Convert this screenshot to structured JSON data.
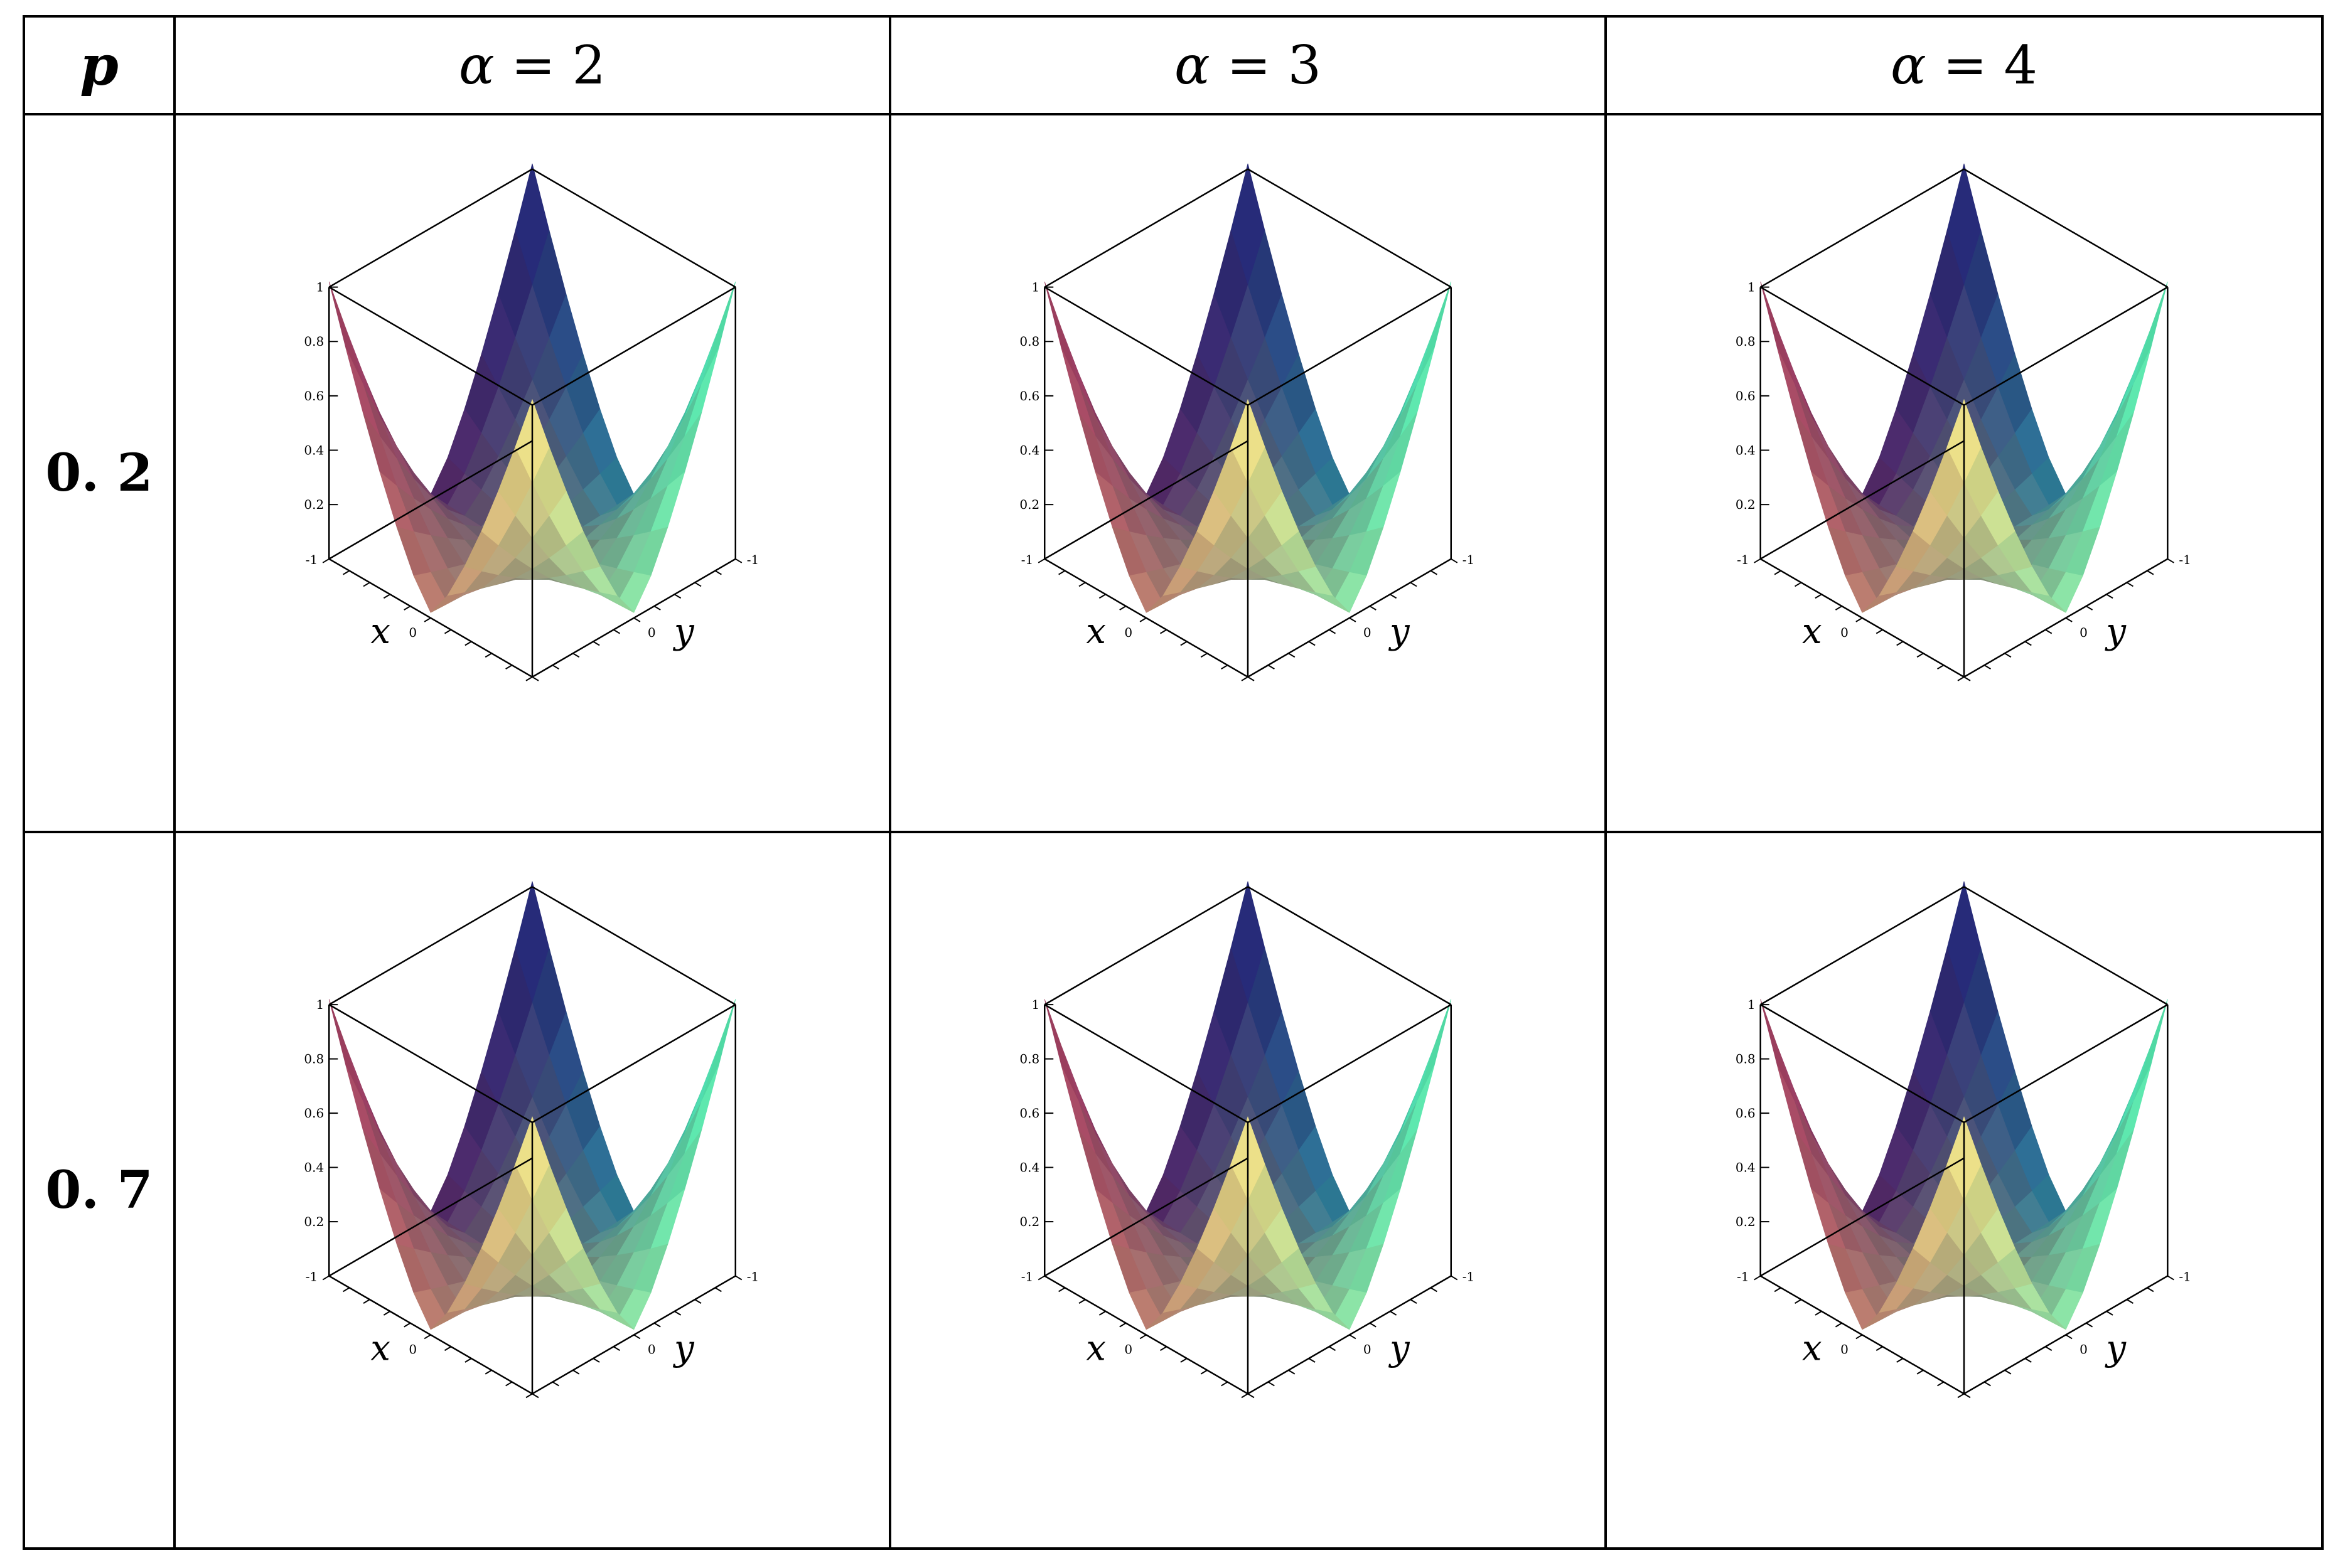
{
  "table": {
    "header": {
      "p_label": "p",
      "columns": [
        {
          "symbol": "α",
          "rel": " = ",
          "value": "2"
        },
        {
          "symbol": "α",
          "rel": " = ",
          "value": "3"
        },
        {
          "symbol": "α",
          "rel": " = ",
          "value": "4"
        }
      ]
    },
    "rows": [
      {
        "p": "0. 2"
      },
      {
        "p": "0. 7"
      }
    ]
  },
  "plot_labels": {
    "z_ticks": [
      "1",
      "0.8",
      "0.6",
      "0.4",
      "0.2"
    ],
    "x_ticks": [
      "-1",
      "0"
    ],
    "y_ticks": [
      "-1",
      "0"
    ],
    "x_name": "x",
    "y_name": "y"
  },
  "colors": {
    "far_corner": "#1e1f78",
    "left_corner": "#8c1f55",
    "right_corner": "#2ef5d3",
    "near_corner": "#ffee8a",
    "left_edge_mid": "#e67d7d",
    "right_edge_mid": "#9af07a",
    "center": "#7a6e60"
  }
}
